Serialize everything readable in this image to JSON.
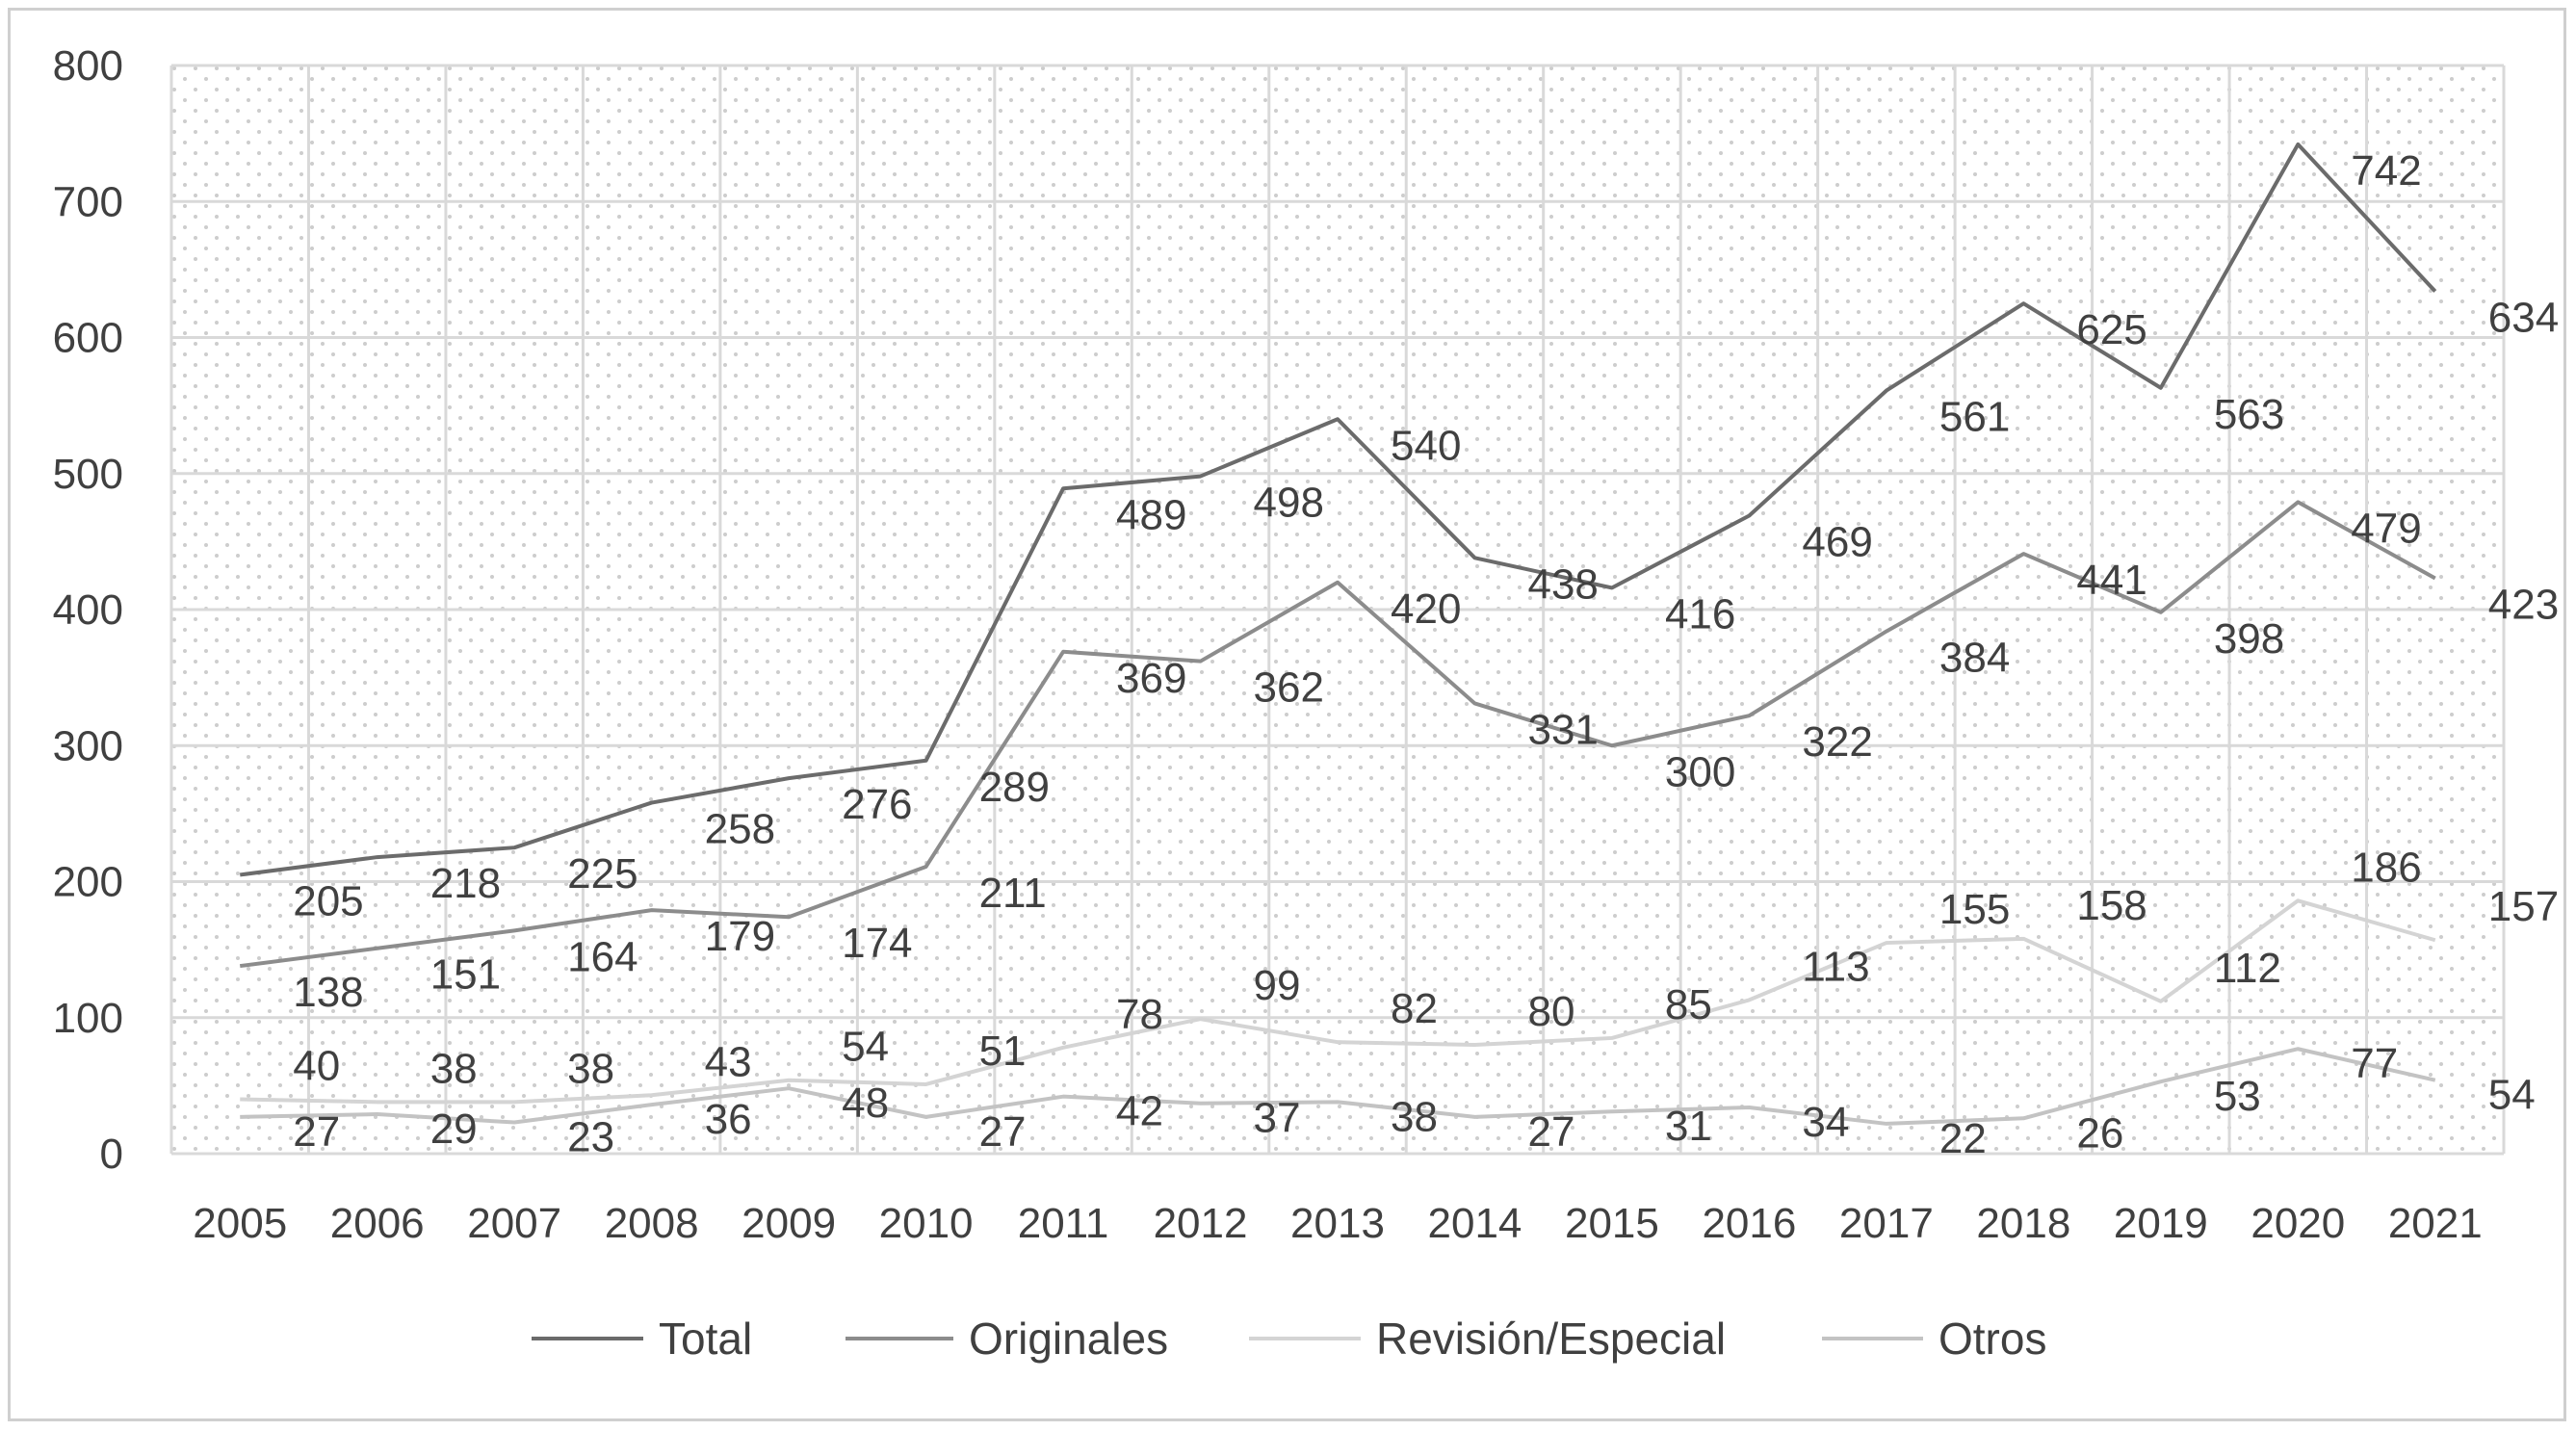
{
  "chart_data": {
    "type": "line",
    "categories": [
      "2005",
      "2006",
      "2007",
      "2008",
      "2009",
      "2010",
      "2011",
      "2012",
      "2013",
      "2014",
      "2015",
      "2016",
      "2017",
      "2018",
      "2019",
      "2020",
      "2021"
    ],
    "ylim": [
      0,
      800
    ],
    "yticks": [
      0,
      100,
      200,
      300,
      400,
      500,
      600,
      700,
      800
    ],
    "grid": true,
    "legend_position": "bottom",
    "series": [
      {
        "name": "Total",
        "color": "#6b6b6b",
        "values": [
          205,
          218,
          225,
          258,
          276,
          289,
          489,
          498,
          540,
          438,
          416,
          469,
          561,
          625,
          563,
          742,
          634
        ]
      },
      {
        "name": "Originales",
        "color": "#8c8c8c",
        "values": [
          138,
          151,
          164,
          179,
          174,
          211,
          369,
          362,
          420,
          331,
          300,
          322,
          384,
          441,
          398,
          479,
          423
        ]
      },
      {
        "name": "Revisión/Especial",
        "color": "#d4d4d4",
        "values": [
          40,
          38,
          38,
          43,
          54,
          51,
          78,
          99,
          82,
          80,
          85,
          113,
          155,
          158,
          112,
          186,
          157
        ]
      },
      {
        "name": "Otros",
        "color": "#c3c3c3",
        "values": [
          27,
          29,
          23,
          36,
          48,
          27,
          42,
          37,
          38,
          27,
          31,
          34,
          22,
          26,
          53,
          77,
          54
        ]
      }
    ]
  }
}
